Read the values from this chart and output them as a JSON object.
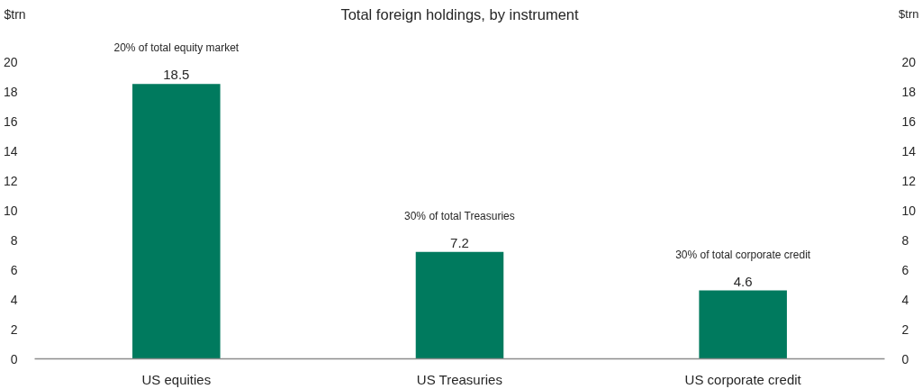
{
  "chart_data": {
    "type": "bar",
    "title": "Total foreign holdings, by instrument",
    "ylabel": "$trn",
    "y2label": "$trn",
    "categories": [
      "US equities",
      "US Treasuries",
      "US corporate credit"
    ],
    "values": [
      18.5,
      7.2,
      4.6
    ],
    "color": "#007a5e",
    "data_labels": true,
    "grid": false,
    "ylim": [
      0,
      20
    ],
    "yticks": [
      0,
      2,
      4,
      6,
      8,
      10,
      12,
      14,
      16,
      18,
      20
    ],
    "y2lim": [
      0,
      20
    ],
    "y2ticks": [
      0,
      2,
      4,
      6,
      8,
      10,
      12,
      14,
      16,
      18,
      20
    ],
    "annotations": [
      "20% of total equity market",
      "30% of total Treasuries",
      "30% of total corporate credit"
    ]
  }
}
